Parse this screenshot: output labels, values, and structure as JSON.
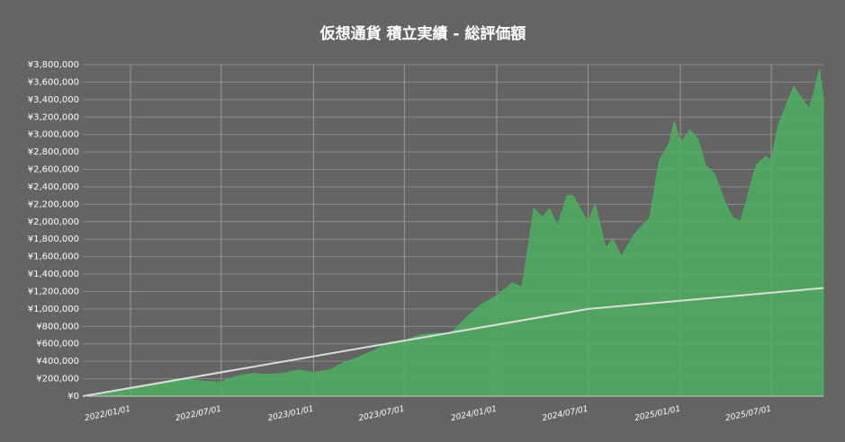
{
  "chart_data": {
    "type": "area",
    "title": "仮想通貨 積立実績 - 総評価額",
    "xlim": [
      "2021/09/28",
      "2025/10/13"
    ],
    "xticks": [
      "2022/01/01",
      "2022/07/01",
      "2023/01/01",
      "2023/07/01",
      "2024/01/01",
      "2024/07/01",
      "2025/01/01",
      "2025/07/01"
    ],
    "ylim": [
      0,
      3800000
    ],
    "yticks": [
      {
        "value": 0,
        "label": "¥0"
      },
      {
        "value": 200000,
        "label": "¥200,000"
      },
      {
        "value": 400000,
        "label": "¥400,000"
      },
      {
        "value": 600000,
        "label": "¥600,000"
      },
      {
        "value": 800000,
        "label": "¥800,000"
      },
      {
        "value": 1000000,
        "label": "¥1,000,000"
      },
      {
        "value": 1200000,
        "label": "¥1,200,000"
      },
      {
        "value": 1400000,
        "label": "¥1,400,000"
      },
      {
        "value": 1600000,
        "label": "¥1,600,000"
      },
      {
        "value": 1800000,
        "label": "¥1,800,000"
      },
      {
        "value": 2000000,
        "label": "¥2,000,000"
      },
      {
        "value": 2200000,
        "label": "¥2,200,000"
      },
      {
        "value": 2400000,
        "label": "¥2,400,000"
      },
      {
        "value": 2600000,
        "label": "¥2,600,000"
      },
      {
        "value": 2800000,
        "label": "¥2,800,000"
      },
      {
        "value": 3000000,
        "label": "¥3,000,000"
      },
      {
        "value": 3200000,
        "label": "¥3,200,000"
      },
      {
        "value": 3400000,
        "label": "¥3,400,000"
      },
      {
        "value": 3600000,
        "label": "¥3,600,000"
      },
      {
        "value": 3800000,
        "label": "¥3,800,000"
      }
    ],
    "grid": true,
    "series": [
      {
        "color": "#4caf5f",
        "fill": true,
        "x": [
          "2021/10/01",
          "2021/11/01",
          "2021/12/01",
          "2022/01/01",
          "2022/02/01",
          "2022/03/01",
          "2022/04/01",
          "2022/05/01",
          "2022/06/01",
          "2022/07/01",
          "2022/08/01",
          "2022/09/01",
          "2022/10/01",
          "2022/11/01",
          "2022/12/01",
          "2023/01/01",
          "2023/02/01",
          "2023/03/01",
          "2023/04/01",
          "2023/05/01",
          "2023/06/01",
          "2023/07/01",
          "2023/08/01",
          "2023/09/01",
          "2023/10/01",
          "2023/11/01",
          "2023/12/01",
          "2024/01/01",
          "2024/02/01",
          "2024/02/20",
          "2024/03/01",
          "2024/03/15",
          "2024/04/01",
          "2024/04/15",
          "2024/05/01",
          "2024/05/20",
          "2024/06/01",
          "2024/06/20",
          "2024/07/01",
          "2024/07/15",
          "2024/08/05",
          "2024/08/20",
          "2024/09/05",
          "2024/10/01",
          "2024/11/01",
          "2024/11/20",
          "2024/12/10",
          "2024/12/20",
          "2025/01/01",
          "2025/01/20",
          "2025/02/05",
          "2025/02/20",
          "2025/03/10",
          "2025/04/01",
          "2025/04/15",
          "2025/05/01",
          "2025/05/20",
          "2025/06/01",
          "2025/06/20",
          "2025/07/01",
          "2025/07/15",
          "2025/08/01",
          "2025/08/15",
          "2025/09/01",
          "2025/09/15",
          "2025/09/25",
          "2025/10/05",
          "2025/10/13"
        ],
        "values": [
          5000,
          30000,
          60000,
          90000,
          110000,
          150000,
          200000,
          190000,
          170000,
          160000,
          230000,
          260000,
          250000,
          260000,
          300000,
          270000,
          300000,
          380000,
          450000,
          520000,
          620000,
          640000,
          700000,
          720000,
          720000,
          900000,
          1050000,
          1150000,
          1300000,
          1250000,
          1600000,
          2150000,
          2050000,
          2150000,
          1950000,
          2300000,
          2300000,
          2100000,
          2000000,
          2200000,
          1700000,
          1800000,
          1600000,
          1850000,
          2050000,
          2700000,
          2900000,
          3150000,
          2900000,
          3050000,
          2950000,
          2650000,
          2550000,
          2200000,
          2050000,
          2000000,
          2400000,
          2650000,
          2750000,
          2700000,
          3100000,
          3350000,
          3550000,
          3400000,
          3300000,
          3500000,
          3750000,
          3400000
        ]
      },
      {
        "color": "#dddddd",
        "fill": false,
        "x": [
          "2021/09/28",
          "2024/07/01",
          "2025/10/13"
        ],
        "values": [
          0,
          1000000,
          1240000
        ]
      }
    ]
  }
}
